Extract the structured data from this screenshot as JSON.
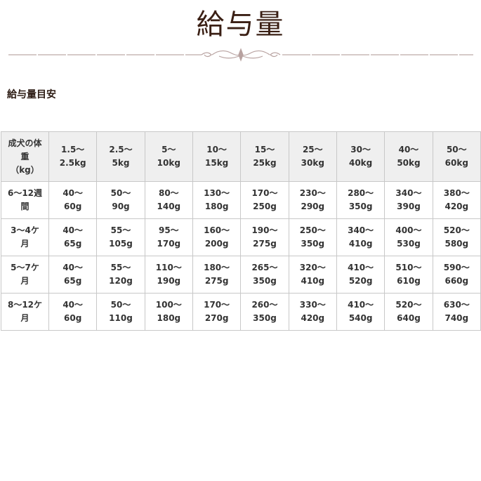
{
  "header": {
    "title": "給与量"
  },
  "section": {
    "title": "給与量目安"
  },
  "colors": {
    "title": "#3a1f14",
    "header_bg": "#efefef",
    "border": "#c8c8c8",
    "ornament": "#b8a2a0"
  },
  "table": {
    "columns": [
      "成犬の体\n重\n（kg）",
      "1.5〜\n2.5kg",
      "2.5〜\n5kg",
      "5〜\n10kg",
      "10〜\n15kg",
      "15〜\n25kg",
      "25〜\n30kg",
      "30〜\n40kg",
      "40〜\n50kg",
      "50〜\n60kg"
    ],
    "rows": [
      [
        "6〜12週\n間",
        "40〜\n60g",
        "50〜\n90g",
        "80〜\n140g",
        "130〜\n180g",
        "170〜\n250g",
        "230〜\n290g",
        "280〜\n350g",
        "340〜\n390g",
        "380〜\n420g"
      ],
      [
        "3〜4ケ\n月",
        "40〜\n65g",
        "55〜\n105g",
        "95〜\n170g",
        "160〜\n200g",
        "190〜\n275g",
        "250〜\n350g",
        "340〜\n410g",
        "400〜\n530g",
        "520〜\n580g"
      ],
      [
        "5〜7ケ\n月",
        "40〜\n65g",
        "55〜\n120g",
        "110〜\n190g",
        "180〜\n275g",
        "265〜\n350g",
        "320〜\n410g",
        "410〜\n520g",
        "510〜\n610g",
        "590〜\n660g"
      ],
      [
        "8〜12ケ\n月",
        "40〜\n60g",
        "50〜\n110g",
        "100〜\n180g",
        "170〜\n270g",
        "260〜\n350g",
        "330〜\n420g",
        "410〜\n540g",
        "520〜\n640g",
        "630〜\n740g"
      ]
    ]
  }
}
